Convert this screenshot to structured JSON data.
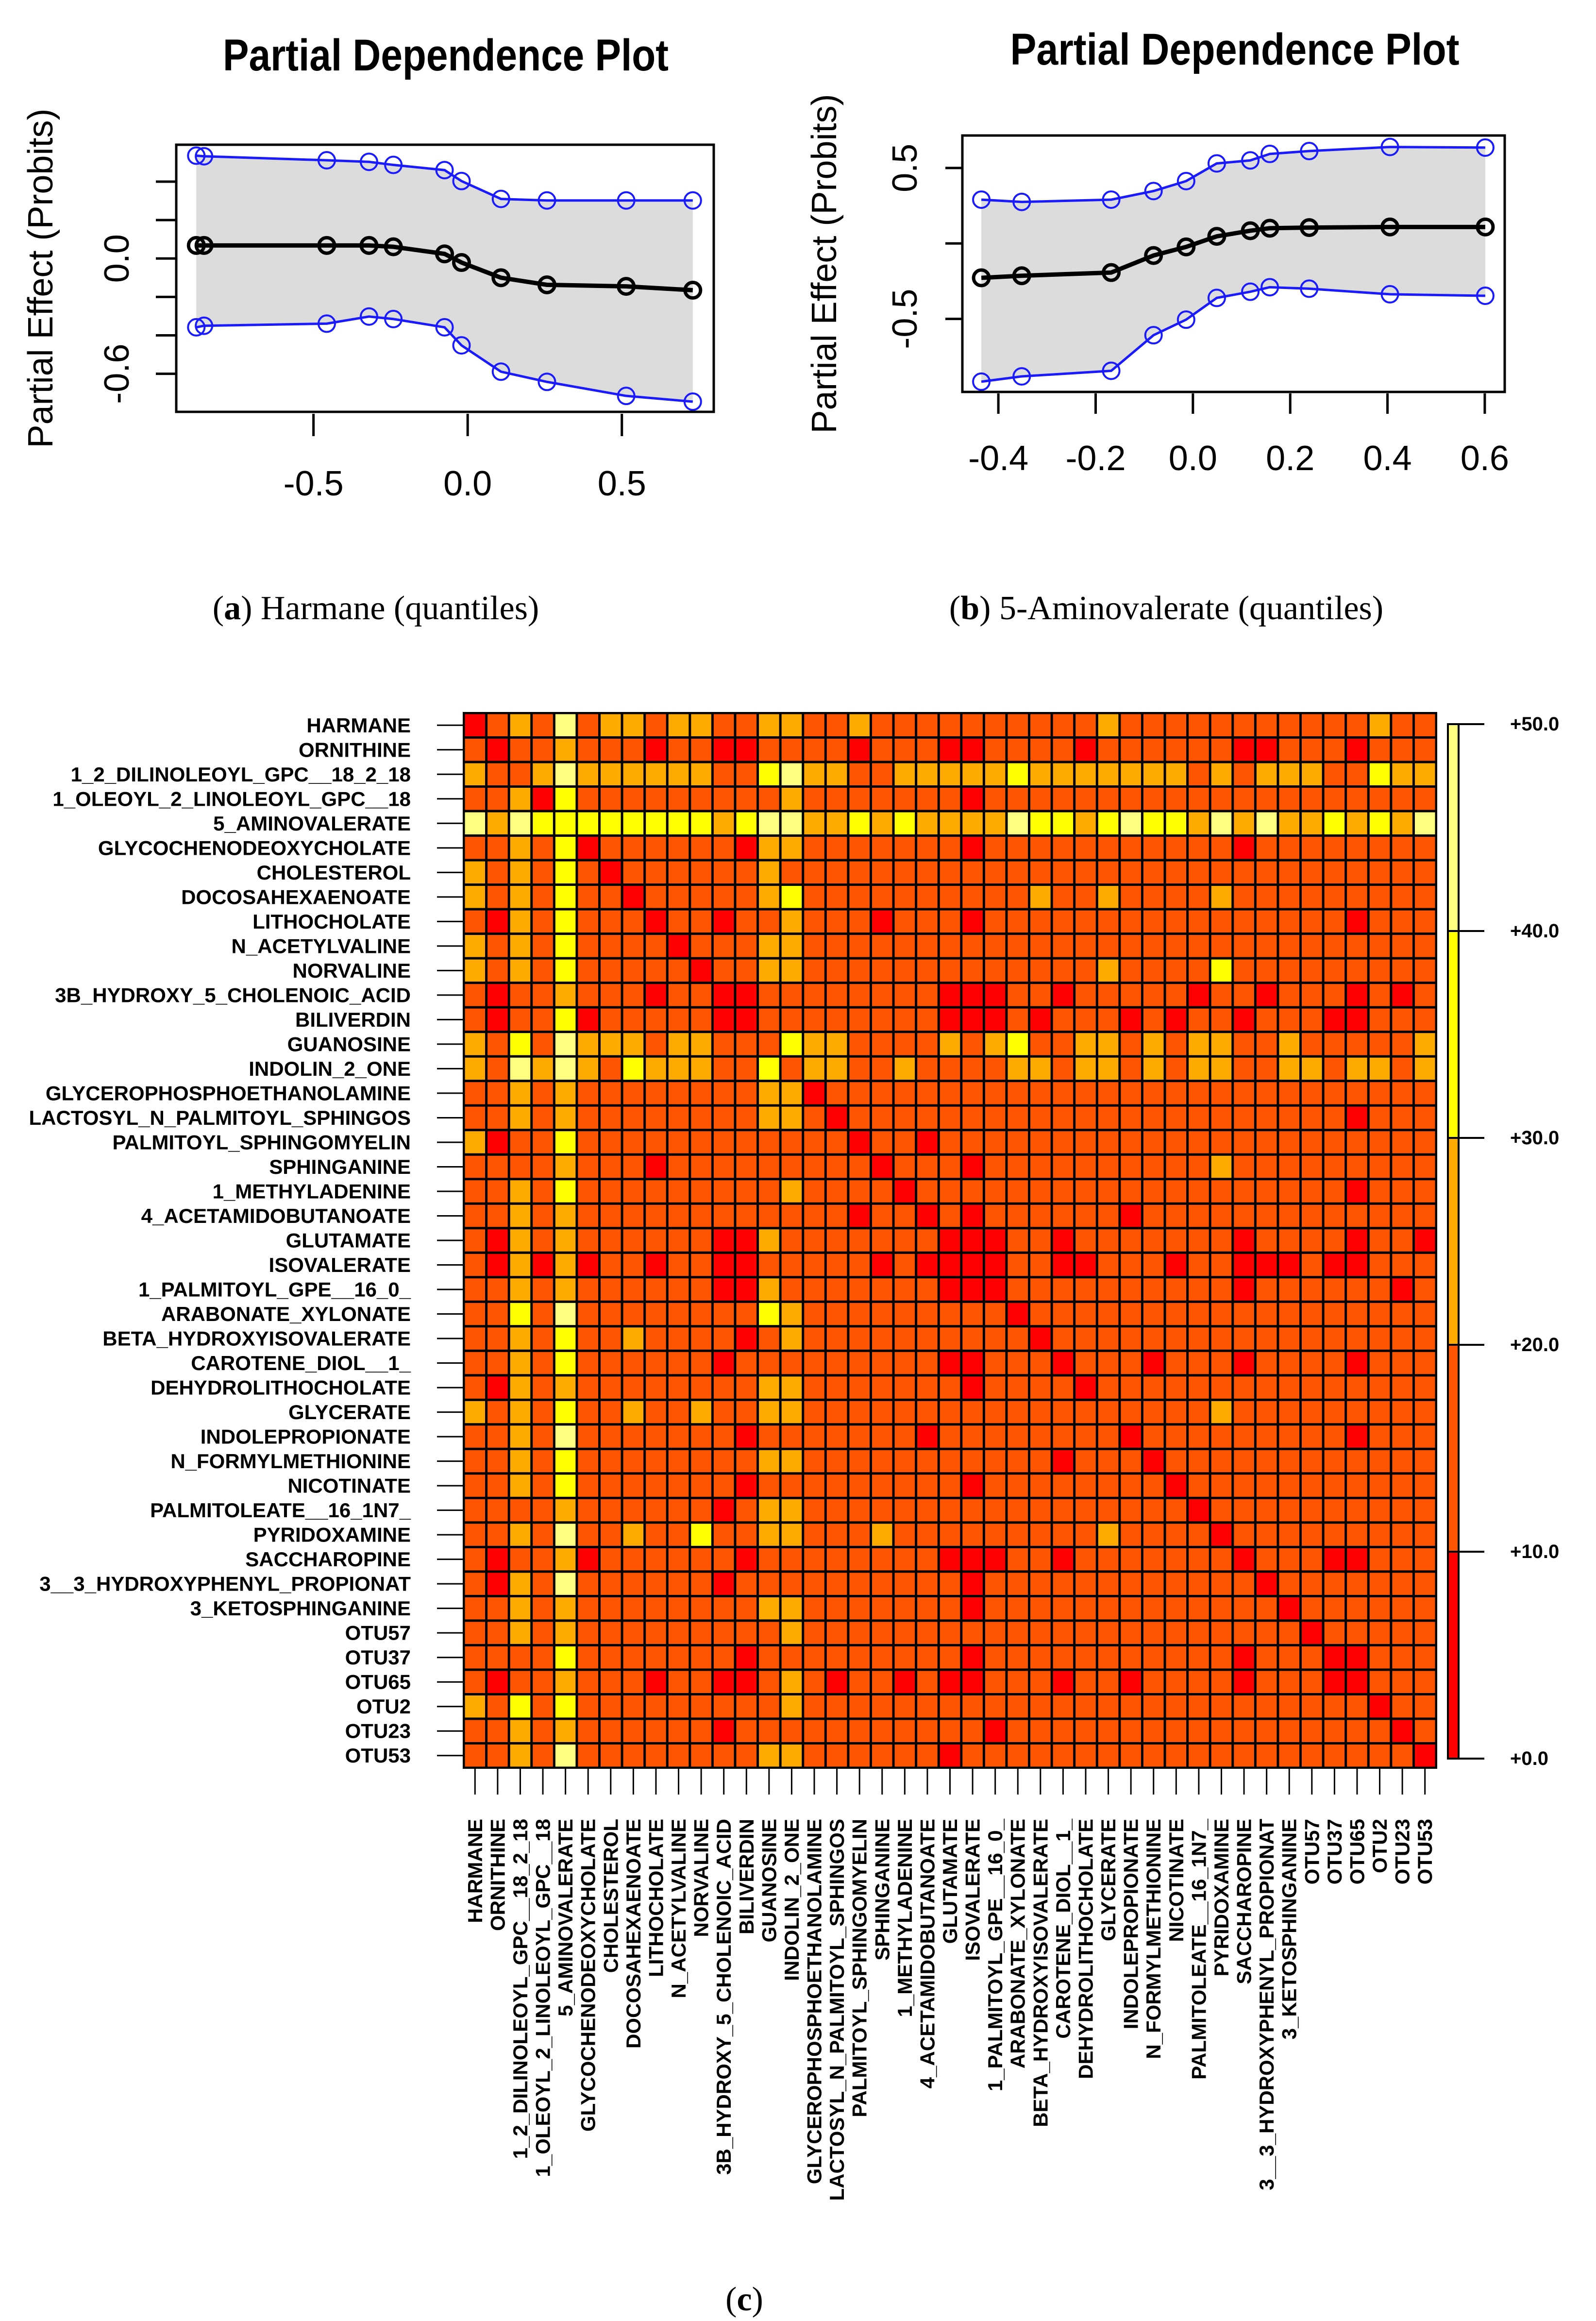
{
  "figure": {
    "caption_a_letter": "a",
    "caption_a_text": "Harmane (quantiles)",
    "caption_b_letter": "b",
    "caption_b_text": "5-Aminovalerate (quantiles)",
    "caption_c_letter": "c"
  },
  "chart_data": [
    {
      "type": "line",
      "title": "Partial Dependence Plot",
      "ylabel": "Partial Effect (Probits)",
      "xlabel": "",
      "xlim": [
        -0.945,
        0.798
      ],
      "ylim": [
        -0.798,
        0.592
      ],
      "xticks": [
        -0.5,
        0.0,
        0.5
      ],
      "xtick_labels": [
        "-0.5",
        "0.0",
        "0.5"
      ],
      "yticks": [
        0.4,
        0.2,
        0.0,
        -0.2,
        -0.4,
        -0.6
      ],
      "ytick_labels": {
        "0.0": "0.0",
        "-0.6": "-0.6"
      },
      "x": [
        -0.88,
        -0.855,
        -0.457,
        -0.32,
        -0.241,
        -0.075,
        -0.02,
        0.108,
        0.257,
        0.514,
        0.73
      ],
      "series": [
        {
          "name": "upper",
          "color": "#1a1aff",
          "values": [
            0.535,
            0.532,
            0.511,
            0.503,
            0.487,
            0.46,
            0.403,
            0.31,
            0.302,
            0.302,
            0.302
          ]
        },
        {
          "name": "estimate",
          "color": "#000000",
          "values": [
            0.068,
            0.068,
            0.068,
            0.068,
            0.061,
            0.024,
            -0.021,
            -0.1,
            -0.137,
            -0.145,
            -0.165
          ]
        },
        {
          "name": "lower",
          "color": "#1a1aff",
          "values": [
            -0.358,
            -0.35,
            -0.339,
            -0.302,
            -0.315,
            -0.358,
            -0.452,
            -0.589,
            -0.642,
            -0.715,
            -0.745
          ]
        }
      ],
      "band_color": "#dcdcdc"
    },
    {
      "type": "line",
      "title": "Partial Dependence Plot",
      "ylabel": "Partial Effect (Probits)",
      "xlabel": "",
      "xlim": [
        -0.474,
        0.641
      ],
      "ylim": [
        -0.984,
        0.715
      ],
      "xticks": [
        -0.4,
        -0.2,
        0.0,
        0.2,
        0.4,
        0.6
      ],
      "xtick_labels": [
        "-0.4",
        "-0.2",
        "0.0",
        "0.2",
        "0.4",
        "0.6"
      ],
      "yticks": [
        0.5,
        0.0,
        -0.5
      ],
      "ytick_labels": {
        "0.5": "0.5",
        "-0.5": "-0.5"
      },
      "x": [
        -0.435,
        -0.352,
        -0.168,
        -0.081,
        -0.014,
        0.049,
        0.118,
        0.158,
        0.239,
        0.405,
        0.601
      ],
      "series": [
        {
          "name": "upper",
          "color": "#1a1aff",
          "values": [
            0.29,
            0.275,
            0.29,
            0.347,
            0.413,
            0.53,
            0.55,
            0.593,
            0.612,
            0.639,
            0.635
          ]
        },
        {
          "name": "estimate",
          "color": "#000000",
          "values": [
            -0.228,
            -0.214,
            -0.193,
            -0.08,
            -0.023,
            0.047,
            0.084,
            0.101,
            0.105,
            0.109,
            0.109
          ]
        },
        {
          "name": "lower",
          "color": "#1a1aff",
          "values": [
            -0.916,
            -0.881,
            -0.844,
            -0.608,
            -0.505,
            -0.361,
            -0.32,
            -0.29,
            -0.3,
            -0.337,
            -0.347
          ]
        }
      ],
      "band_color": "#dcdcdc"
    },
    {
      "type": "heatmap",
      "title": "",
      "variables": [
        "HARMANE",
        "ORNITHINE",
        "1_2_DILINOLEOYL_GPC__18_2_18",
        "1_OLEOYL_2_LINOLEOYL_GPC__18",
        "5_AMINOVALERATE",
        "GLYCOCHENODEOXYCHOLATE",
        "CHOLESTEROL",
        "DOCOSAHEXAENOATE",
        "LITHOCHOLATE",
        "N_ACETYLVALINE",
        "NORVALINE",
        "3B_HYDROXY_5_CHOLENOIC_ACID",
        "BILIVERDIN",
        "GUANOSINE",
        "INDOLIN_2_ONE",
        "GLYCEROPHOSPHOETHANOLAMINE",
        "LACTOSYL_N_PALMITOYL_SPHINGOS",
        "PALMITOYL_SPHINGOMYELIN",
        "SPHINGANINE",
        "1_METHYLADENINE",
        "4_ACETAMIDOBUTANOATE",
        "GLUTAMATE",
        "ISOVALERATE",
        "1_PALMITOYL_GPE__16_0_",
        "ARABONATE_XYLONATE",
        "BETA_HYDROXYISOVALERATE",
        "CAROTENE_DIOL__1_",
        "DEHYDROLITHOCHOLATE",
        "GLYCERATE",
        "INDOLEPROPIONATE",
        "N_FORMYLMETHIONINE",
        "NICOTINATE",
        "PALMITOLEATE__16_1N7_",
        "PYRIDOXAMINE",
        "SACCHAROPINE",
        "3__3_HYDROXYPHENYL_PROPIONAT",
        "3_KETOSPHINGANINE",
        "OTU57",
        "OTU37",
        "OTU65",
        "OTU2",
        "OTU23",
        "OTU53"
      ],
      "bins": [
        [
          0,
          10
        ],
        [
          10,
          20
        ],
        [
          20,
          30
        ],
        [
          30,
          40
        ],
        [
          40,
          50
        ]
      ],
      "bin_colors": [
        "#ff0000",
        "#ff5500",
        "#ffaa00",
        "#ffff00",
        "#ffff80"
      ],
      "legend_labels": [
        "+50.0",
        "+40.0",
        "+30.0",
        "+20.0",
        "+10.0",
        "+0.0"
      ],
      "legend_values": [
        50,
        40,
        30,
        20,
        10,
        0
      ],
      "legend_position": "right",
      "matrix_bin_index_rows": [
        "0121412212211221121111111111211111111111211",
        "1011211101100111101110011110111111001110111",
        "2112422222211342211222223222222212122211322",
        "1120311111111121111111011111111111111111111",
        "4243333333323442232322224332343324242232324",
        "1121301111110221111111011111111111011111111",
        "2121310111111211111111111111111111111111111",
        "2121311011111231111111111211211112111111111",
        "1021311101101121110111011111111111111110111",
        "2121311110111221111111111111111111111111111",
        "2121311111011221111111111111211113111111111",
        "1011211101100111111110001101111101101110101",
        "1011301111100111111110001011101011011100111",
        "2131422212211132211112123112212122112111112",
        "2142421322211312211211112212212122112212212",
        "1121211111111220111111111111111111111111111",
        "1121211111111221011111111111111111111110111",
        "2011311111111111101101111111111111111111111",
        "1111211101111111110111011111111112111111111",
        "1121311111111121111011111111111111111110111",
        "1121211111111111101101011111101111111111111",
        "1021211111100211111110001101111111011110110",
        "1020201101100111110100001100111011000100111",
        "1121211111100211111110001111111111011111101",
        "1131411111111321111111110111111111111111111",
        "1121311211110121111111111011111111111111111",
        "1121311111101111111110011101110111011110111",
        "1021211111111221111111011110111111111111111",
        "2121311211211221111111111111111112111111111",
        "1121411111110111111101111111101111111110111",
        "1121311111111221111111111101110111111111111",
        "1121311111110111111111011111111011111111111",
        "1111211111101221111111111111111101111111111",
        "1121411211311221112111111111211110111111111",
        "1011201111110111111110001101111111011100111",
        "1021411111101111111111011111111111101111111",
        "1121211111111221111111011111111111110111111",
        "1121211111111121111111111111111111111011111",
        "1111311111110111111111011111111111011100111",
        "1011211101100121011010011101101111011100111",
        "2131311111111121111111111111111111111111011",
        "1121211111101111111111101111111111111111101",
        "1121411111111221111110111111111111111111110"
      ]
    }
  ]
}
